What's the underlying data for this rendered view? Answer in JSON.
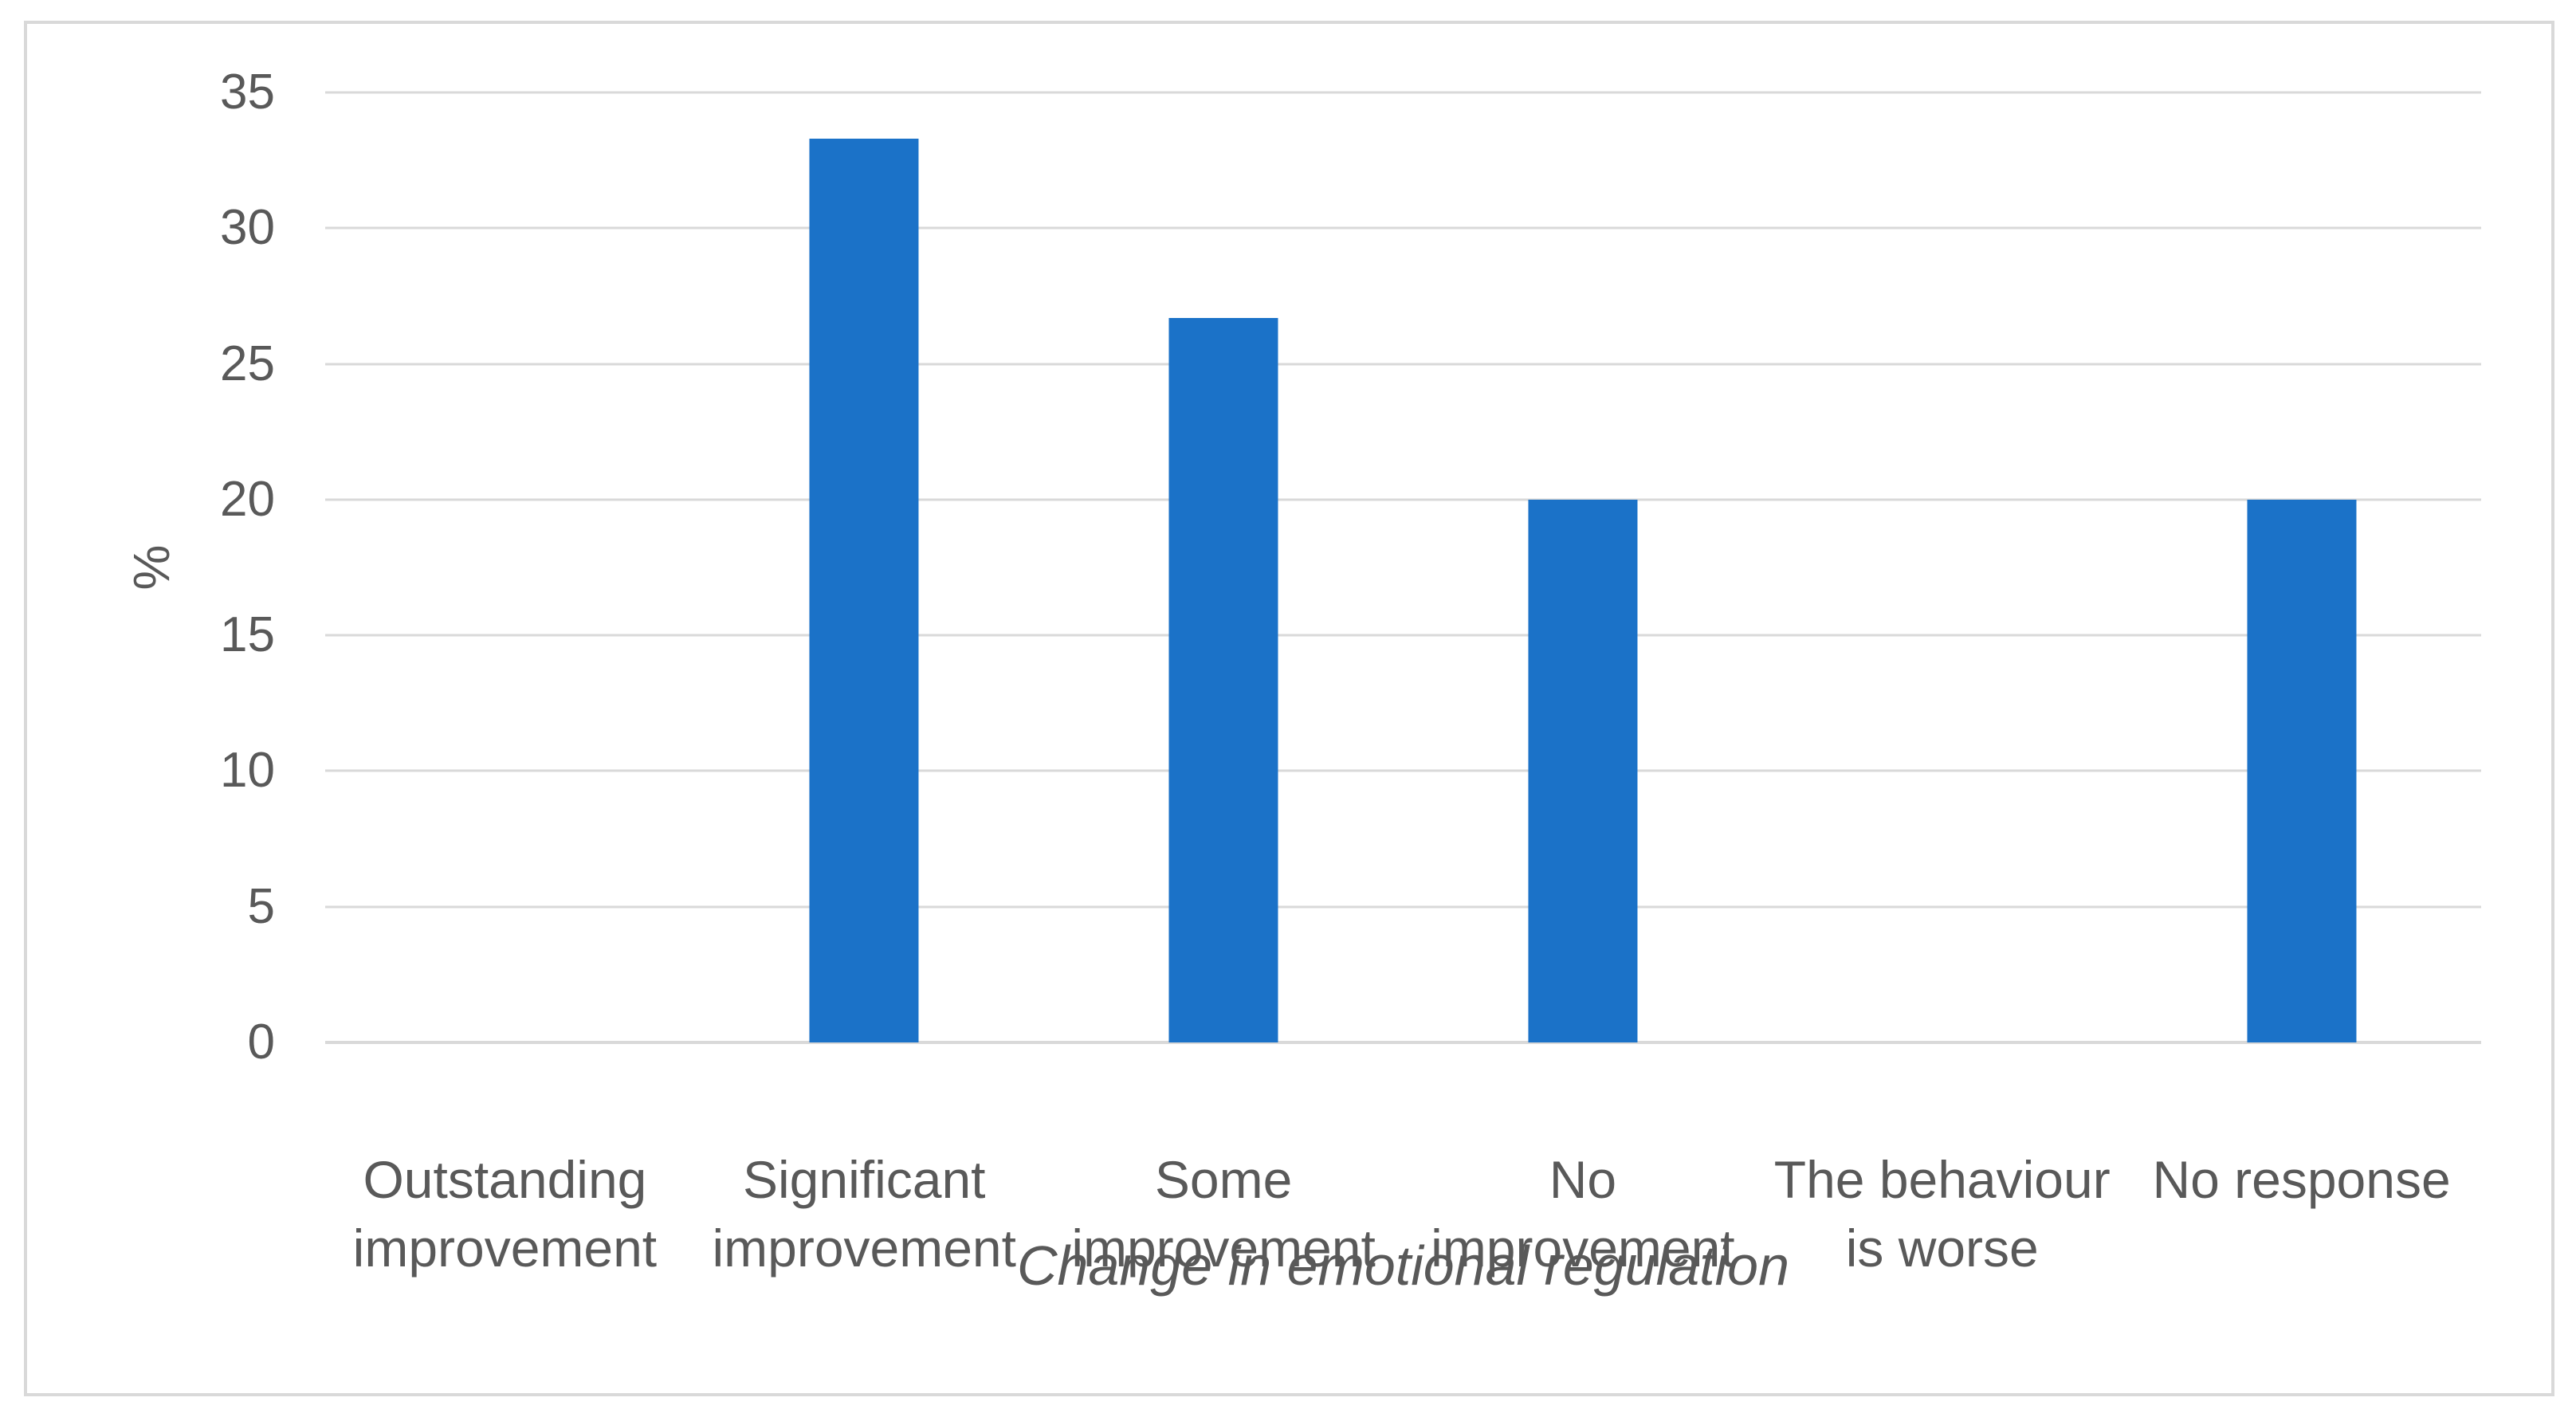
{
  "chart_data": {
    "type": "bar",
    "title": "",
    "categories": [
      "Outstanding improvement",
      "Significant improvement",
      "Some improvement",
      "No improvement",
      "The behaviour is worse",
      "No response"
    ],
    "category_lines": [
      "Outstanding\nimprovement",
      "Significant\nimprovement",
      "Some\nimprovement",
      "No\nimprovement",
      "The behaviour\nis worse",
      "No response"
    ],
    "values": [
      0,
      33.3,
      26.7,
      20,
      0,
      20
    ],
    "xlabel": "Change in emotional regulation",
    "ylabel": "%",
    "ylim": [
      0,
      35
    ],
    "yticks": [
      35,
      30,
      25,
      20,
      15,
      10,
      5,
      0
    ],
    "grid": true,
    "legend": false,
    "bar_color": "#1B72C8",
    "gridline_color": "#D9D9D9",
    "text_color": "#595959",
    "frame_border_color": "#D9D9D9"
  }
}
